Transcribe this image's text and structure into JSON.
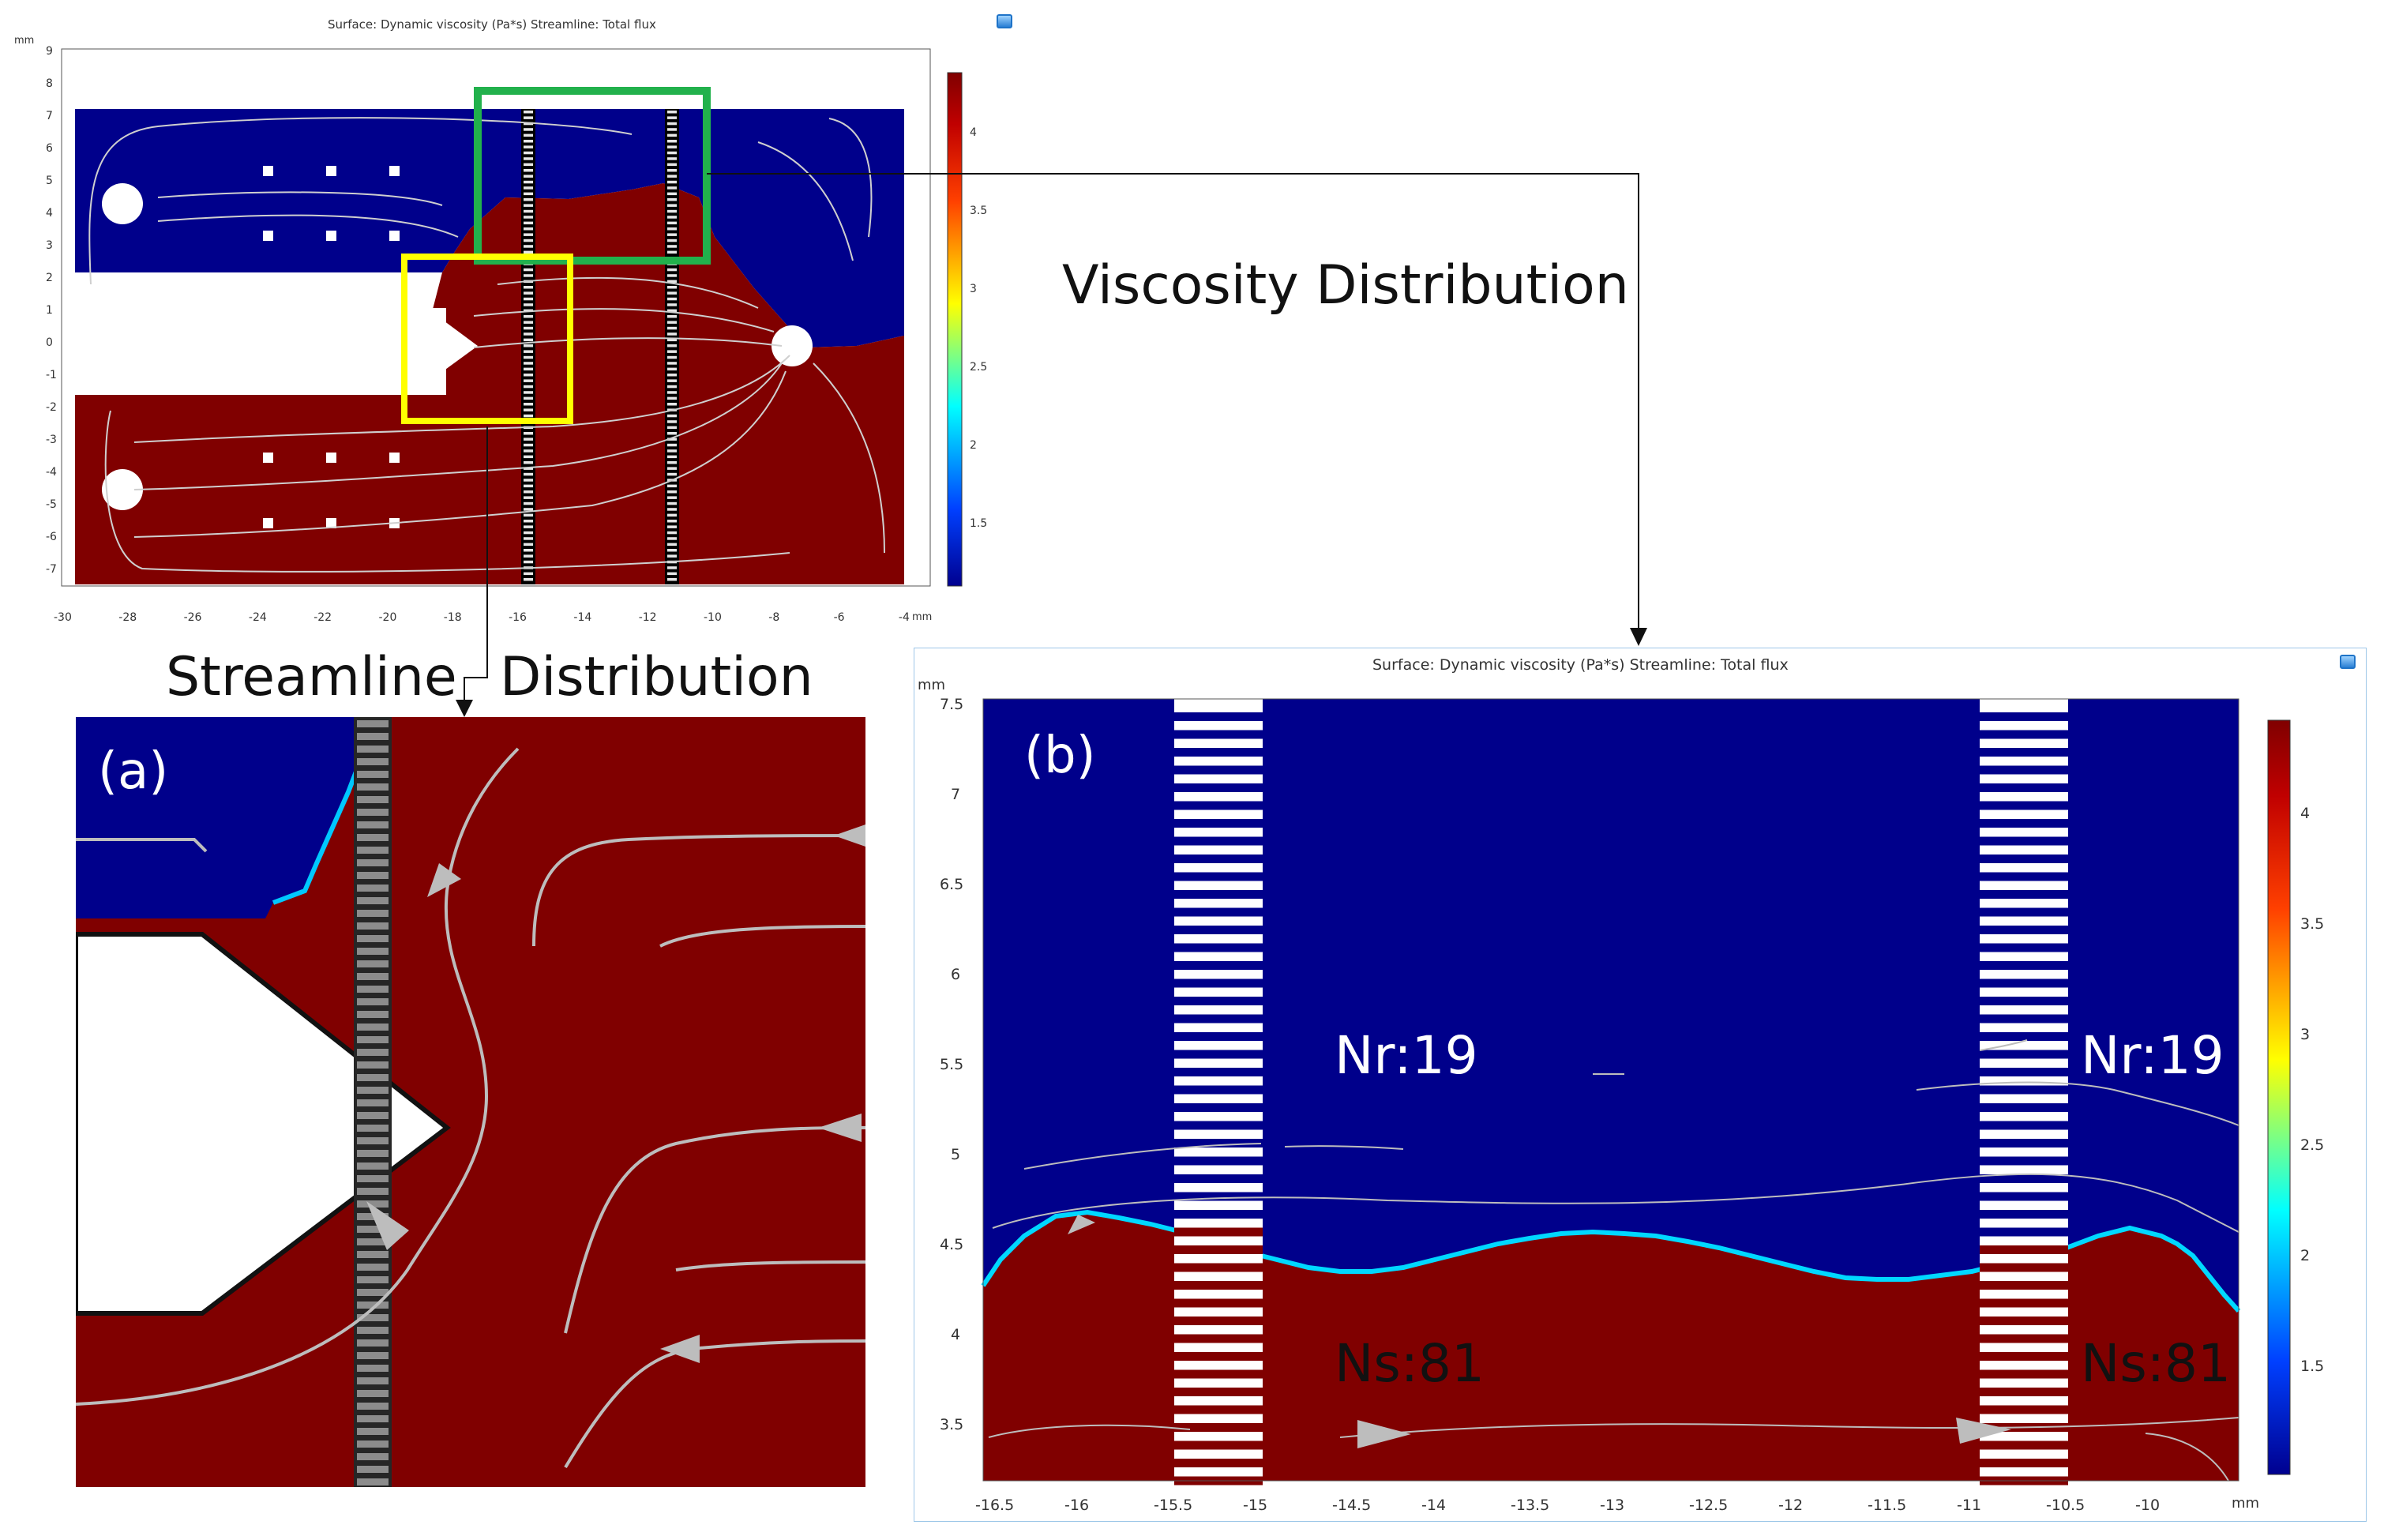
{
  "top_plot": {
    "title": "Surface: Dynamic viscosity (Pa*s)  Streamline: Total flux",
    "y_unit": "mm",
    "x_unit": "mm",
    "y_ticks": [
      "9",
      "8",
      "7",
      "6",
      "5",
      "4",
      "3",
      "2",
      "1",
      "0",
      "-1",
      "-2",
      "-3",
      "-4",
      "-5",
      "-6",
      "-7"
    ],
    "x_ticks": [
      "-30",
      "-28",
      "-26",
      "-24",
      "-22",
      "-20",
      "-18",
      "-16",
      "-14",
      "-12",
      "-10",
      "-8",
      "-6",
      "-4"
    ],
    "colorbar_ticks": [
      "4",
      "3.5",
      "3",
      "2.5",
      "2",
      "1.5"
    ]
  },
  "labels": {
    "viscosity": "Viscosity Distribution",
    "streamline": "Streamline",
    "distribution": "Distribution"
  },
  "panel_a": {
    "label": "(a)"
  },
  "panel_b": {
    "label": "(b)",
    "title": "Surface: Dynamic viscosity (Pa*s)  Streamline: Total flux",
    "y_unit": "mm",
    "x_unit": "mm",
    "y_ticks": [
      "7.5",
      "7",
      "6.5",
      "6",
      "5.5",
      "5",
      "4.5",
      "4",
      "3.5"
    ],
    "x_ticks": [
      "-16.5",
      "-16",
      "-15.5",
      "-15",
      "-14.5",
      "-14",
      "-13.5",
      "-13",
      "-12.5",
      "-12",
      "-11.5",
      "-11",
      "-10.5",
      "-10"
    ],
    "colorbar_ticks": [
      "4",
      "3.5",
      "3",
      "2.5",
      "2",
      "1.5"
    ],
    "nr_left": "Nr:19",
    "nr_right": "Nr:19",
    "ns_left": "Ns:81",
    "ns_right": "Ns:81"
  },
  "colors": {
    "low": "#00008b",
    "high": "#800000",
    "green_box": "#22b14c",
    "yellow_box": "#ffff00"
  }
}
